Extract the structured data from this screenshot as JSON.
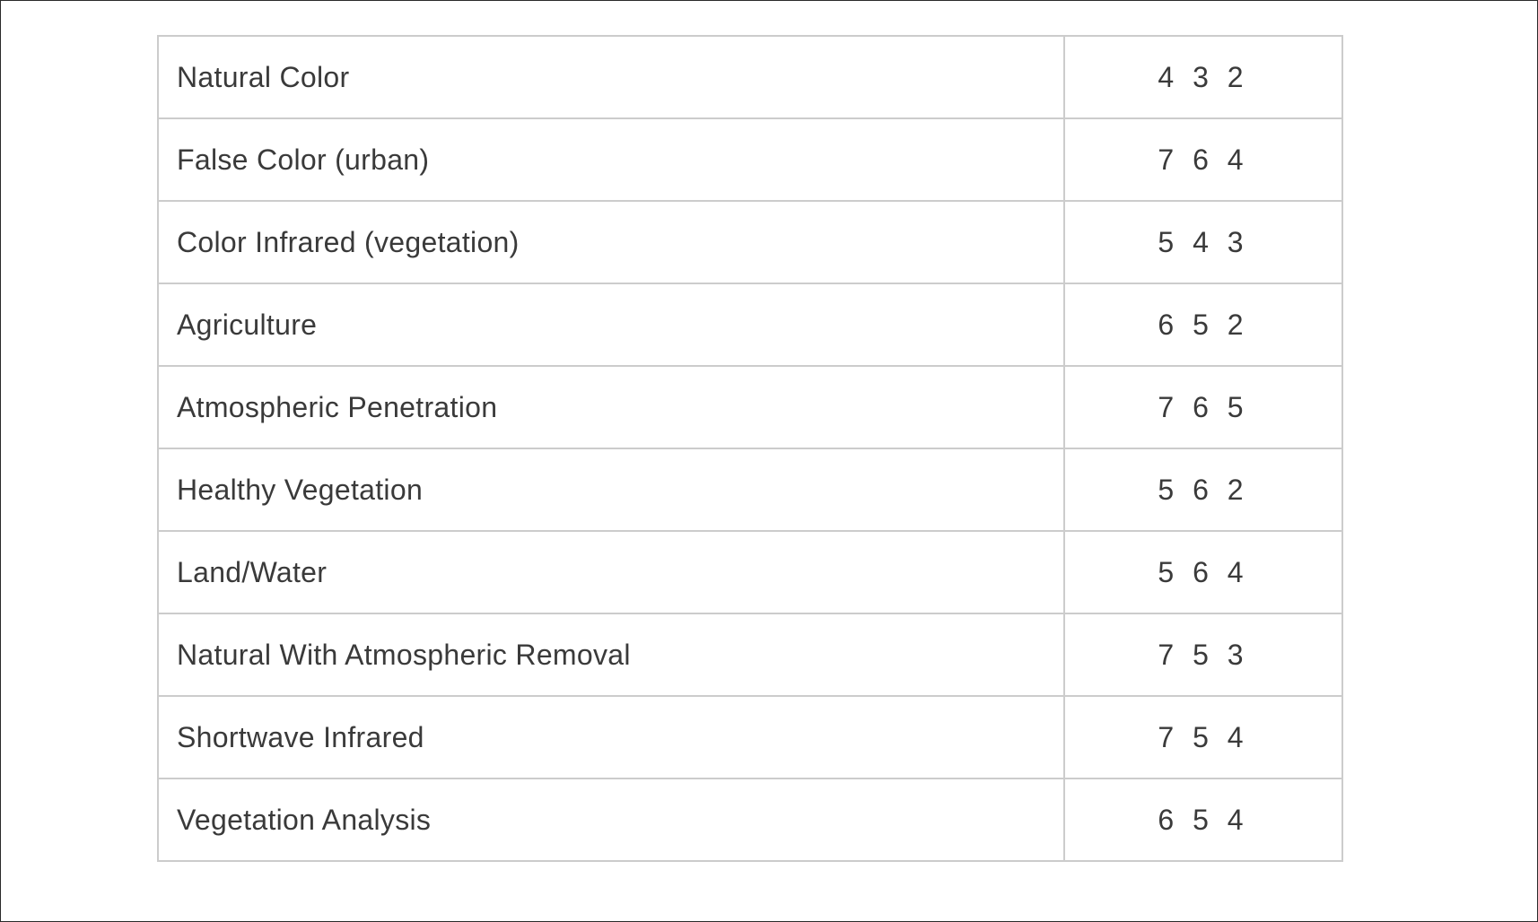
{
  "band_combinations": [
    {
      "name": "Natural Color",
      "bands": "4 3 2"
    },
    {
      "name": "False Color (urban)",
      "bands": "7 6 4"
    },
    {
      "name": "Color Infrared (vegetation)",
      "bands": "5 4 3"
    },
    {
      "name": "Agriculture",
      "bands": "6 5 2"
    },
    {
      "name": "Atmospheric Penetration",
      "bands": "7 6 5"
    },
    {
      "name": "Healthy Vegetation",
      "bands": "5 6 2"
    },
    {
      "name": "Land/Water",
      "bands": "5 6 4"
    },
    {
      "name": "Natural With Atmospheric Removal",
      "bands": "7 5 3"
    },
    {
      "name": "Shortwave Infrared",
      "bands": "7 5 4"
    },
    {
      "name": "Vegetation Analysis",
      "bands": "6 5 4"
    }
  ],
  "colors": {
    "border": "#cccccc",
    "text": "#3a3a3a",
    "frame": "#2b2b2b"
  }
}
